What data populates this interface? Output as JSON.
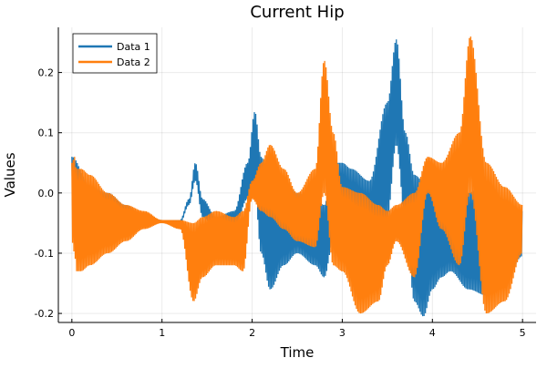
{
  "chart_data": {
    "type": "line",
    "title": "Current Hip",
    "xlabel": "Time",
    "ylabel": "Values",
    "xlim": [
      -0.15,
      5.15
    ],
    "ylim": [
      -0.215,
      0.275
    ],
    "x_ticks": [
      0,
      1,
      2,
      3,
      4,
      5
    ],
    "x_tick_labels": [
      "0",
      "1",
      "2",
      "3",
      "4",
      "5"
    ],
    "y_ticks": [
      -0.2,
      -0.1,
      0.0,
      0.1,
      0.2
    ],
    "y_tick_labels": [
      "-0.2",
      "-0.1",
      "0.0",
      "0.1",
      "0.2"
    ],
    "grid": true,
    "legend_position": "top-left",
    "oscillating": true,
    "series": [
      {
        "name": "Data 1",
        "color": "#1f77b4",
        "x": [
          0.0,
          0.2,
          0.4,
          0.6,
          0.8,
          1.0,
          1.2,
          1.3,
          1.37,
          1.45,
          1.6,
          1.8,
          1.95,
          2.03,
          2.1,
          2.2,
          2.35,
          2.5,
          2.7,
          2.8,
          2.9,
          3.0,
          3.1,
          3.3,
          3.5,
          3.6,
          3.7,
          3.8,
          3.9,
          4.0,
          4.1,
          4.2,
          4.4,
          4.6,
          4.8,
          5.0
        ],
        "upper": [
          0.06,
          0.01,
          0.0,
          -0.02,
          -0.04,
          -0.045,
          -0.045,
          -0.01,
          0.05,
          -0.01,
          -0.04,
          -0.03,
          0.05,
          0.135,
          0.06,
          0.02,
          0.02,
          0.0,
          -0.01,
          -0.02,
          0.05,
          0.05,
          0.04,
          0.02,
          0.15,
          0.255,
          0.1,
          0.03,
          0.02,
          0.04,
          0.01,
          0.0,
          0.0,
          0.02,
          -0.01,
          -0.03
        ],
        "lower": [
          -0.02,
          -0.04,
          -0.05,
          -0.05,
          -0.05,
          -0.05,
          -0.05,
          -0.02,
          0.02,
          -0.04,
          -0.06,
          -0.06,
          -0.01,
          0.0,
          -0.1,
          -0.16,
          -0.12,
          -0.1,
          -0.12,
          -0.14,
          -0.08,
          -0.1,
          -0.14,
          -0.16,
          -0.04,
          0.08,
          -0.05,
          -0.18,
          -0.205,
          -0.16,
          -0.14,
          -0.13,
          -0.16,
          -0.17,
          -0.15,
          -0.105
        ]
      },
      {
        "name": "Data 2",
        "color": "#ff7f0e",
        "x": [
          0.0,
          0.03,
          0.05,
          0.1,
          0.2,
          0.4,
          0.6,
          0.8,
          1.0,
          1.2,
          1.35,
          1.45,
          1.6,
          1.8,
          1.9,
          2.0,
          2.1,
          2.2,
          2.35,
          2.5,
          2.7,
          2.8,
          2.9,
          3.0,
          3.2,
          3.4,
          3.5,
          3.6,
          3.8,
          3.95,
          4.1,
          4.3,
          4.42,
          4.6,
          4.8,
          5.0
        ],
        "upper": [
          0.05,
          0.06,
          0.04,
          0.04,
          0.03,
          0.0,
          -0.02,
          -0.03,
          -0.045,
          -0.045,
          -0.05,
          -0.04,
          -0.03,
          -0.04,
          -0.03,
          0.02,
          0.05,
          0.08,
          0.04,
          0.0,
          0.04,
          0.22,
          0.1,
          0.01,
          0.0,
          -0.02,
          -0.03,
          -0.02,
          0.0,
          0.06,
          0.05,
          0.1,
          0.26,
          0.05,
          0.01,
          -0.02
        ],
        "lower": [
          -0.08,
          -0.1,
          -0.13,
          -0.13,
          -0.12,
          -0.1,
          -0.08,
          -0.06,
          -0.05,
          -0.06,
          -0.18,
          -0.14,
          -0.12,
          -0.12,
          -0.13,
          -0.01,
          -0.03,
          -0.04,
          -0.06,
          -0.08,
          -0.09,
          0.0,
          -0.12,
          -0.13,
          -0.2,
          -0.18,
          -0.12,
          -0.08,
          -0.14,
          0.0,
          -0.06,
          -0.12,
          0.0,
          -0.2,
          -0.18,
          -0.1
        ]
      }
    ]
  }
}
